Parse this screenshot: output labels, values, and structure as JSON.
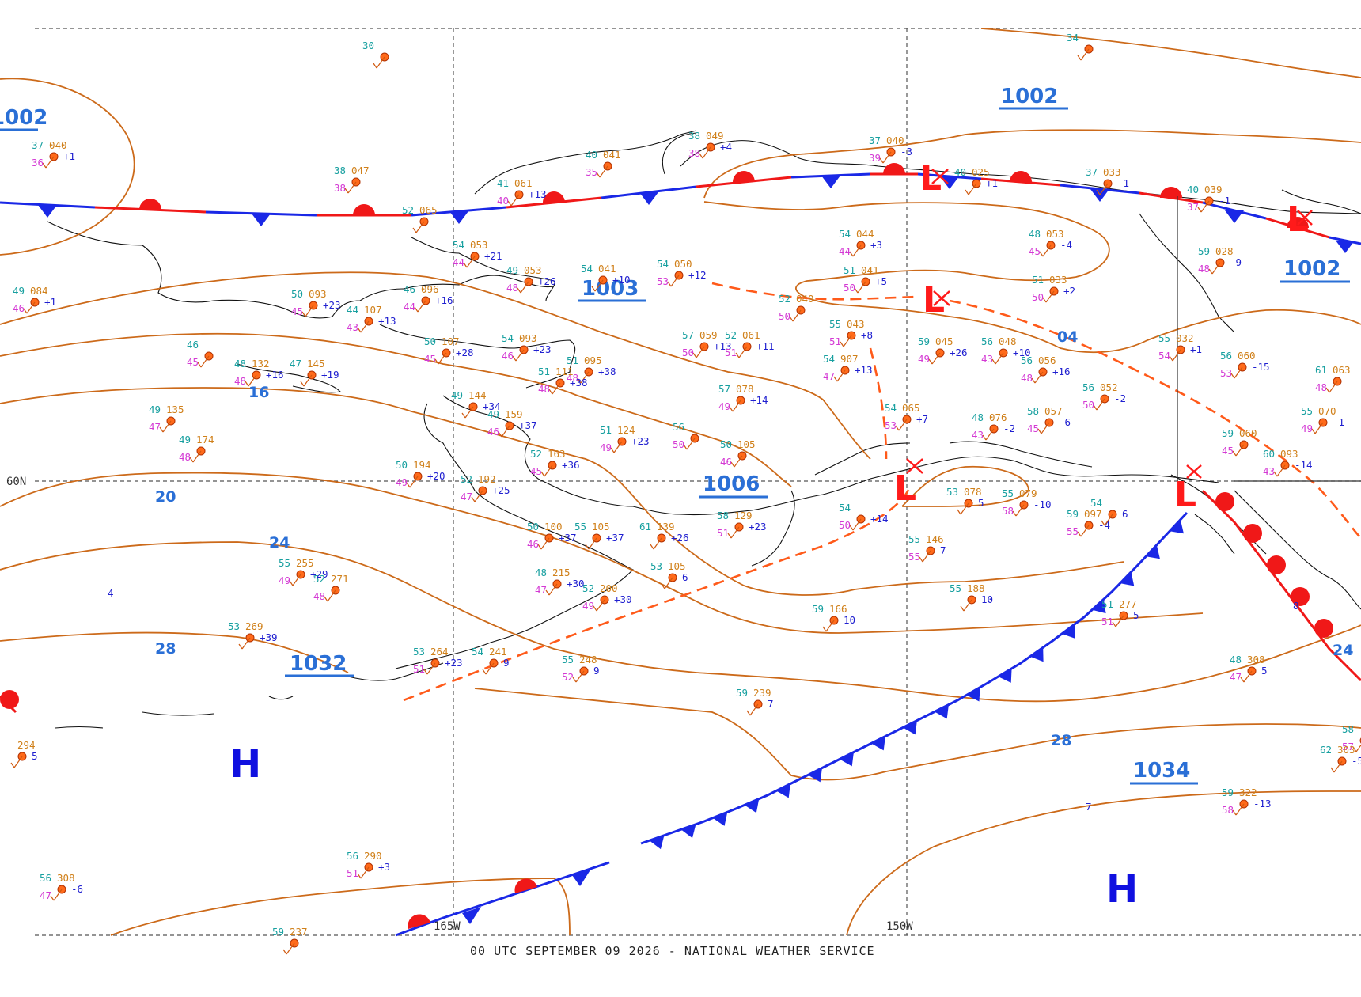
{
  "footer": "00 UTC SEPTEMBER 09 2026 - NATIONAL WEATHER SERVICE",
  "colors": {
    "isobar": "#cc6a1a",
    "cold_front": "#1a28e6",
    "warm_front": "#f01818",
    "center_label": "#2a6fd6",
    "high": "#1010e0",
    "low": "#ff1a1a",
    "gridline": "#555555",
    "coast": "#111111",
    "dewpoint": "#d43ad4",
    "temperature": "#18a0a0",
    "pressure": "#d0801a",
    "tendency": "#2020d0"
  },
  "grid": {
    "lat_label": "60N",
    "lon_labels": [
      "165W",
      "150W"
    ]
  },
  "pressure_centers": [
    {
      "label": "1002"
    },
    {
      "label": "1002"
    },
    {
      "label": "1003"
    },
    {
      "label": "1006"
    },
    {
      "label": "1032"
    },
    {
      "label": "1034"
    },
    {
      "label": "1002"
    }
  ],
  "highs": [
    "H",
    "H"
  ],
  "lows": [
    "L",
    "L",
    "L",
    "L",
    "L"
  ],
  "isobar_labels": [
    "16",
    "20",
    "24",
    "28",
    "28",
    "24",
    "04"
  ],
  "observations": [
    {
      "t": "30",
      "p": ""
    },
    {
      "t": "34",
      "p": ""
    },
    {
      "t": "37",
      "p": "040",
      "d": "36",
      "c": "+1"
    },
    {
      "t": "38",
      "p": "047",
      "d": "38"
    },
    {
      "t": "38",
      "p": "049",
      "d": "38",
      "c": "+4"
    },
    {
      "t": "40",
      "p": "041",
      "d": "35"
    },
    {
      "t": "41",
      "p": "061",
      "d": "40",
      "c": "+13"
    },
    {
      "t": "52",
      "p": "065"
    },
    {
      "t": "37",
      "p": "040",
      "d": "39",
      "c": "-3"
    },
    {
      "t": "40",
      "p": "025",
      "c": "+1"
    },
    {
      "t": "37",
      "p": "033",
      "c": "-1"
    },
    {
      "t": "40",
      "p": "039",
      "d": "37",
      "c": "-1"
    },
    {
      "t": "54",
      "p": "053",
      "d": "44",
      "c": "+21"
    },
    {
      "t": "49",
      "p": "053",
      "d": "48",
      "c": "+26"
    },
    {
      "t": "54",
      "p": "041",
      "c": "+10"
    },
    {
      "t": "54",
      "p": "050",
      "d": "53",
      "c": "+12"
    },
    {
      "t": "54",
      "p": "044",
      "d": "44",
      "c": "+3"
    },
    {
      "t": "48",
      "p": "053",
      "d": "45",
      "c": "-4"
    },
    {
      "t": "51",
      "p": "041",
      "d": "50",
      "c": "+5"
    },
    {
      "t": "51",
      "p": "033",
      "d": "50",
      "c": "+2"
    },
    {
      "t": "59",
      "p": "028",
      "d": "48",
      "c": "-9"
    },
    {
      "t": "49",
      "p": "084",
      "d": "46",
      "c": "+1"
    },
    {
      "t": "50",
      "p": "093",
      "d": "45",
      "c": "+23"
    },
    {
      "t": "44",
      "p": "107",
      "d": "43",
      "c": "+13"
    },
    {
      "t": "46",
      "p": "096",
      "d": "44",
      "c": "+16"
    },
    {
      "t": "52",
      "p": "040",
      "d": "50"
    },
    {
      "t": "55",
      "p": "043",
      "d": "51",
      "c": "+8"
    },
    {
      "t": "57",
      "p": "059",
      "d": "50",
      "c": "+13"
    },
    {
      "t": "52",
      "p": "061",
      "d": "51",
      "c": "+11"
    },
    {
      "t": "59",
      "p": "045",
      "d": "49",
      "c": "+26"
    },
    {
      "t": "56",
      "p": "048",
      "d": "43",
      "c": "+10"
    },
    {
      "t": "56",
      "p": "056",
      "d": "48",
      "c": "+16"
    },
    {
      "t": "55",
      "p": "032",
      "d": "54",
      "c": "+1"
    },
    {
      "t": "56",
      "p": "060",
      "d": "53",
      "c": "-15"
    },
    {
      "t": "61",
      "p": "063",
      "d": "48"
    },
    {
      "t": "50",
      "p": "107",
      "d": "45",
      "c": "+28"
    },
    {
      "t": "54",
      "p": "093",
      "d": "46",
      "c": "+23"
    },
    {
      "t": "51",
      "p": "095",
      "d": "48",
      "c": "+38"
    },
    {
      "t": "51",
      "p": "111",
      "d": "48",
      "c": "+38"
    },
    {
      "t": "54",
      "p": "907",
      "d": "47",
      "c": "+13"
    },
    {
      "t": "57",
      "p": "078",
      "d": "49",
      "c": "+14"
    },
    {
      "t": "56",
      "p": "052",
      "d": "50",
      "c": "-2"
    },
    {
      "t": "55",
      "p": "070",
      "d": "49",
      "c": "-1"
    },
    {
      "t": "48",
      "p": "132",
      "d": "48",
      "c": "+16"
    },
    {
      "t": "47",
      "p": "145",
      "c": "+19"
    },
    {
      "t": "46",
      "p": "",
      "d": "45"
    },
    {
      "t": "49",
      "p": "144",
      "c": "+34"
    },
    {
      "t": "49",
      "p": "159",
      "d": "46",
      "c": "+37"
    },
    {
      "t": "51",
      "p": "124",
      "d": "49",
      "c": "+23"
    },
    {
      "t": "56",
      "p": "",
      "d": "50"
    },
    {
      "t": "50",
      "p": "105",
      "d": "46"
    },
    {
      "t": "54",
      "p": "065",
      "d": "53",
      "c": "+7"
    },
    {
      "t": "48",
      "p": "076",
      "d": "43",
      "c": "-2"
    },
    {
      "t": "58",
      "p": "057",
      "d": "45",
      "c": "-6"
    },
    {
      "t": "59",
      "p": "060",
      "d": "45"
    },
    {
      "t": "60",
      "p": "093",
      "d": "43",
      "c": "-14"
    },
    {
      "t": "49",
      "p": "135",
      "d": "47"
    },
    {
      "t": "49",
      "p": "174",
      "d": "48"
    },
    {
      "t": "50",
      "p": "194",
      "d": "49",
      "c": "+20"
    },
    {
      "t": "52",
      "p": "192",
      "d": "47",
      "c": "+25"
    },
    {
      "t": "52",
      "p": "163",
      "d": "45",
      "c": "+36"
    },
    {
      "t": "50",
      "p": "100",
      "d": "46",
      "c": "+37"
    },
    {
      "t": "55",
      "p": "105",
      "c": "+37"
    },
    {
      "t": "61",
      "p": "139",
      "c": "+26"
    },
    {
      "t": "58",
      "p": "129",
      "d": "51",
      "c": "+23"
    },
    {
      "t": "54",
      "p": "",
      "d": "50",
      "c": "+14"
    },
    {
      "t": "53",
      "p": "078",
      "c": "5"
    },
    {
      "t": "55",
      "p": "079",
      "d": "58",
      "c": "-10"
    },
    {
      "t": "59",
      "p": "097",
      "d": "55",
      "c": "-4"
    },
    {
      "t": "54",
      "p": "",
      "c": "6"
    },
    {
      "t": "55",
      "p": "255",
      "d": "49",
      "c": "+29"
    },
    {
      "t": "52",
      "p": "271",
      "d": "48"
    },
    {
      "t": "48",
      "p": "215",
      "d": "47",
      "c": "+30"
    },
    {
      "t": "52",
      "p": "200",
      "d": "49",
      "c": "+30"
    },
    {
      "t": "53",
      "p": "105",
      "c": "6"
    },
    {
      "t": "55",
      "p": "146",
      "d": "55",
      "c": "7"
    },
    {
      "t": "55",
      "p": "188",
      "c": "10"
    },
    {
      "t": "59",
      "p": "166",
      "c": "10"
    },
    {
      "t": "51",
      "p": "277",
      "d": "51",
      "c": "5"
    },
    {
      "t": "53",
      "p": "269",
      "c": "+39"
    },
    {
      "t": "53",
      "p": "264",
      "d": "51",
      "c": "+23"
    },
    {
      "t": "54",
      "p": "241",
      "c": "9"
    },
    {
      "t": "55",
      "p": "248",
      "d": "52",
      "c": "9"
    },
    {
      "t": "59",
      "p": "239",
      "c": "7"
    },
    {
      "t": "48",
      "p": "308",
      "d": "47",
      "c": "5"
    },
    {
      "t": "58",
      "p": "",
      "d": "57"
    },
    {
      "t": "62",
      "p": "303",
      "c": "-5"
    },
    {
      "t": "59",
      "p": "322",
      "d": "58",
      "c": "-13"
    },
    {
      "t": "56",
      "p": "290",
      "d": "51",
      "c": "+3"
    },
    {
      "t": "56",
      "p": "308",
      "d": "47",
      "c": "-6"
    },
    {
      "t": "59",
      "p": "237"
    },
    {
      "t": "",
      "p": "294",
      "c": "5"
    },
    {
      "t": "",
      "p": "",
      "c": "4"
    },
    {
      "t": "",
      "p": "",
      "c": "7"
    },
    {
      "t": "",
      "p": "",
      "c": "8"
    }
  ]
}
